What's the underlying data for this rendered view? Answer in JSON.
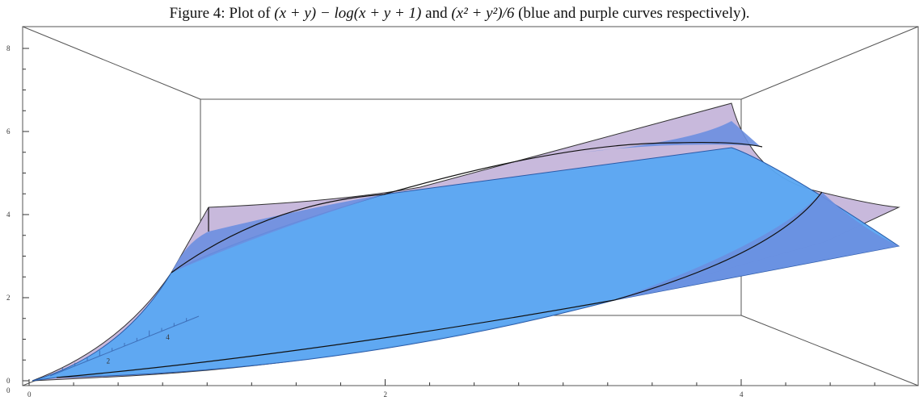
{
  "caption": {
    "prefix": "Figure 4: Plot of ",
    "expr1": "(x + y) − log(x + y + 1)",
    "middle": " and ",
    "expr2": "(x² + y²)/6",
    "suffix": " (blue and purple curves respectively)."
  },
  "colors": {
    "blue_surface": "#5aa6f2",
    "blue_edge": "#3e84d6",
    "purple_surface": "#c8b9dc",
    "overlap": "#6b8fe0",
    "box": "#555555"
  },
  "chart_data": {
    "type": "surface3d",
    "title": "Figure 4: Plot of (x + y) − log(x + y + 1) and (x² + y²)/6 (blue and purple curves respectively).",
    "series": [
      {
        "name": "(x + y) − log(x + y + 1)",
        "color": "blue"
      },
      {
        "name": "(x² + y²)/6",
        "color": "purple"
      }
    ],
    "x_ticks": [
      "0",
      "2",
      "4"
    ],
    "z_ticks": [
      "0",
      "2",
      "4",
      "6",
      "8"
    ],
    "y_ticks": [
      "0",
      "2",
      "4"
    ],
    "zlim": [
      0,
      8
    ],
    "xlim": [
      0,
      5
    ]
  }
}
